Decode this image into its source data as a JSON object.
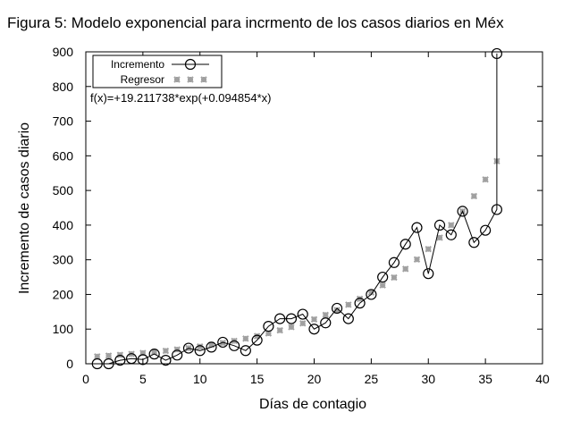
{
  "chart_data": {
    "type": "scatter",
    "title": "Figura 5: Modelo exponencial para incrmento de los casos diarios en Méx",
    "xlabel": "Días de contagio",
    "ylabel": "Incremento de casos diario",
    "xlim": [
      0,
      40
    ],
    "ylim": [
      0,
      900
    ],
    "xticks": [
      0,
      5,
      10,
      15,
      20,
      25,
      30,
      35,
      40
    ],
    "yticks": [
      0,
      100,
      200,
      300,
      400,
      500,
      600,
      700,
      800,
      900
    ],
    "grid": false,
    "legend_position": "top-left",
    "annotation": "f(x)=+19.211738*exp(+0.094854*x)",
    "series": [
      {
        "name": "Incremento",
        "style": "line-circles",
        "color": "#000000",
        "x": [
          1,
          2,
          3,
          4,
          5,
          6,
          7,
          8,
          9,
          10,
          11,
          12,
          13,
          14,
          15,
          16,
          17,
          18,
          19,
          20,
          21,
          22,
          23,
          24,
          25,
          26,
          27,
          28,
          29,
          30,
          31,
          32,
          33,
          34,
          35,
          36,
          36
        ],
        "y": [
          0,
          0,
          10,
          15,
          12,
          28,
          10,
          25,
          45,
          38,
          48,
          62,
          52,
          38,
          68,
          108,
          130,
          130,
          143,
          100,
          118,
          160,
          130,
          175,
          200,
          250,
          292,
          345,
          393,
          260,
          400,
          372,
          440,
          350,
          385,
          445,
          895
        ]
      },
      {
        "name": "Regresor",
        "style": "stars",
        "color": "#a0a0a0",
        "x": [
          1,
          2,
          3,
          4,
          5,
          6,
          7,
          8,
          9,
          10,
          11,
          12,
          13,
          14,
          15,
          16,
          17,
          18,
          19,
          20,
          21,
          22,
          23,
          24,
          25,
          26,
          27,
          28,
          29,
          30,
          31,
          32,
          33,
          34,
          35,
          36
        ],
        "y": [
          21.1,
          23.2,
          25.5,
          28.1,
          30.9,
          33.9,
          37.3,
          41.0,
          45.1,
          49.6,
          54.6,
          60.0,
          66.0,
          72.5,
          79.7,
          87.7,
          96.4,
          106.0,
          116.5,
          128.1,
          140.9,
          154.9,
          170.3,
          187.3,
          205.9,
          226.4,
          248.9,
          273.7,
          300.9,
          330.9,
          363.8,
          400.0,
          439.8,
          483.6,
          531.7,
          584.6
        ]
      }
    ]
  }
}
